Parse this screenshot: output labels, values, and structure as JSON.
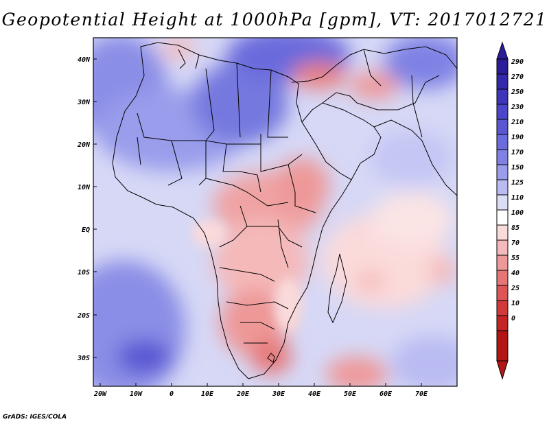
{
  "title": "Geopotential Height at 1000hPa [gpm], VT: 2017012721",
  "footer": "GrADS: IGES/COLA",
  "map": {
    "lon_ticks": [
      "20W",
      "10W",
      "0",
      "10E",
      "20E",
      "30E",
      "40E",
      "50E",
      "60E",
      "70E"
    ],
    "lat_ticks": [
      "40N",
      "30N",
      "20N",
      "10N",
      "EQ",
      "10S",
      "20S",
      "30S"
    ]
  },
  "colorbar": {
    "labels": [
      "290",
      "270",
      "250",
      "230",
      "210",
      "190",
      "170",
      "150",
      "125",
      "110",
      "100",
      "85",
      "70",
      "55",
      "40",
      "25",
      "10",
      "0"
    ],
    "colors": [
      "#2b1d99",
      "#3327aa",
      "#3e35bb",
      "#4b45c9",
      "#5a57d3",
      "#6a6bdc",
      "#7f82e4",
      "#9a9deb",
      "#b9bbf2",
      "#dcdef8",
      "#ffffff",
      "#fbdada",
      "#f5b9b9",
      "#ee9898",
      "#e67676",
      "#dd5555",
      "#d13a3a",
      "#c52424",
      "#b31515"
    ]
  }
}
